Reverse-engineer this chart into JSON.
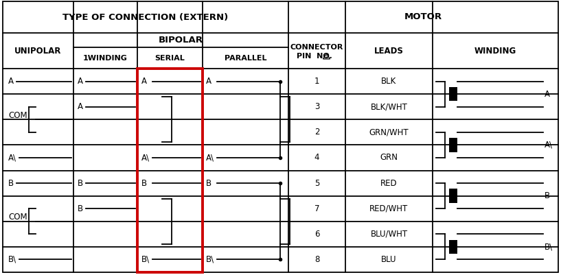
{
  "title_left": "TYPE OF CONNECTION (EXTERN)",
  "title_right": "MOTOR",
  "bipolar_label": "BIPOLAR",
  "sub_headers": [
    "1WINDING",
    "SERIAL",
    "PARALLEL"
  ],
  "motor_headers": [
    "CONNECTOR\nPIN NO.",
    "LEADS",
    "WINDING"
  ],
  "pins": [
    "1",
    "3",
    "2",
    "4",
    "5",
    "7",
    "6",
    "8"
  ],
  "leads": [
    "BLK",
    "BLK/WHT",
    "GRN/WHT",
    "GRN",
    "RED",
    "RED/WHT",
    "BLU/WHT",
    "BLU"
  ],
  "bg_color": "#ffffff",
  "line_color": "#000000",
  "red_color": "#cc0000",
  "font_size": 8.5,
  "title_font_size": 9.5
}
